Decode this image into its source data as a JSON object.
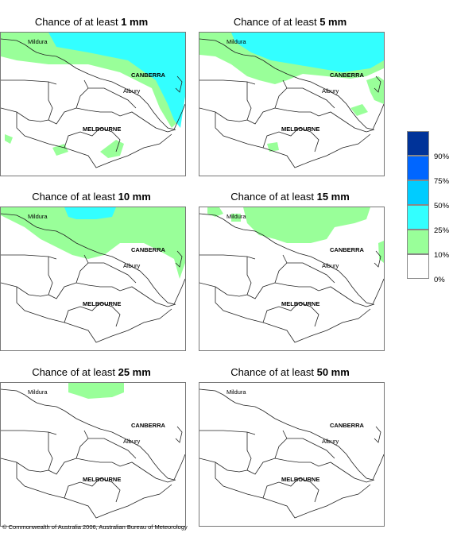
{
  "panels": [
    {
      "prefix": "Chance of at least ",
      "amount": "1 mm"
    },
    {
      "prefix": "Chance of at least ",
      "amount": "5 mm"
    },
    {
      "prefix": "Chance of at least ",
      "amount": "10 mm"
    },
    {
      "prefix": "Chance of at least ",
      "amount": "15 mm"
    },
    {
      "prefix": "Chance of at least ",
      "amount": "25 mm"
    },
    {
      "prefix": "Chance of at least ",
      "amount": "50 mm"
    }
  ],
  "places": {
    "mildura": "Mildura",
    "canberra": "CANBERRA",
    "albury": "Albury",
    "melbourne": "MELBOURNE"
  },
  "legend": {
    "labels": [
      "90%",
      "75%",
      "50%",
      "25%",
      "10%",
      "0%"
    ],
    "colors": [
      "#003399",
      "#0066ff",
      "#00ccff",
      "#33ffff",
      "#99ff99",
      "#ffffff"
    ]
  },
  "copyright": "© Commonwealth of Australia 2006, Australian Bureau of Meteorology"
}
